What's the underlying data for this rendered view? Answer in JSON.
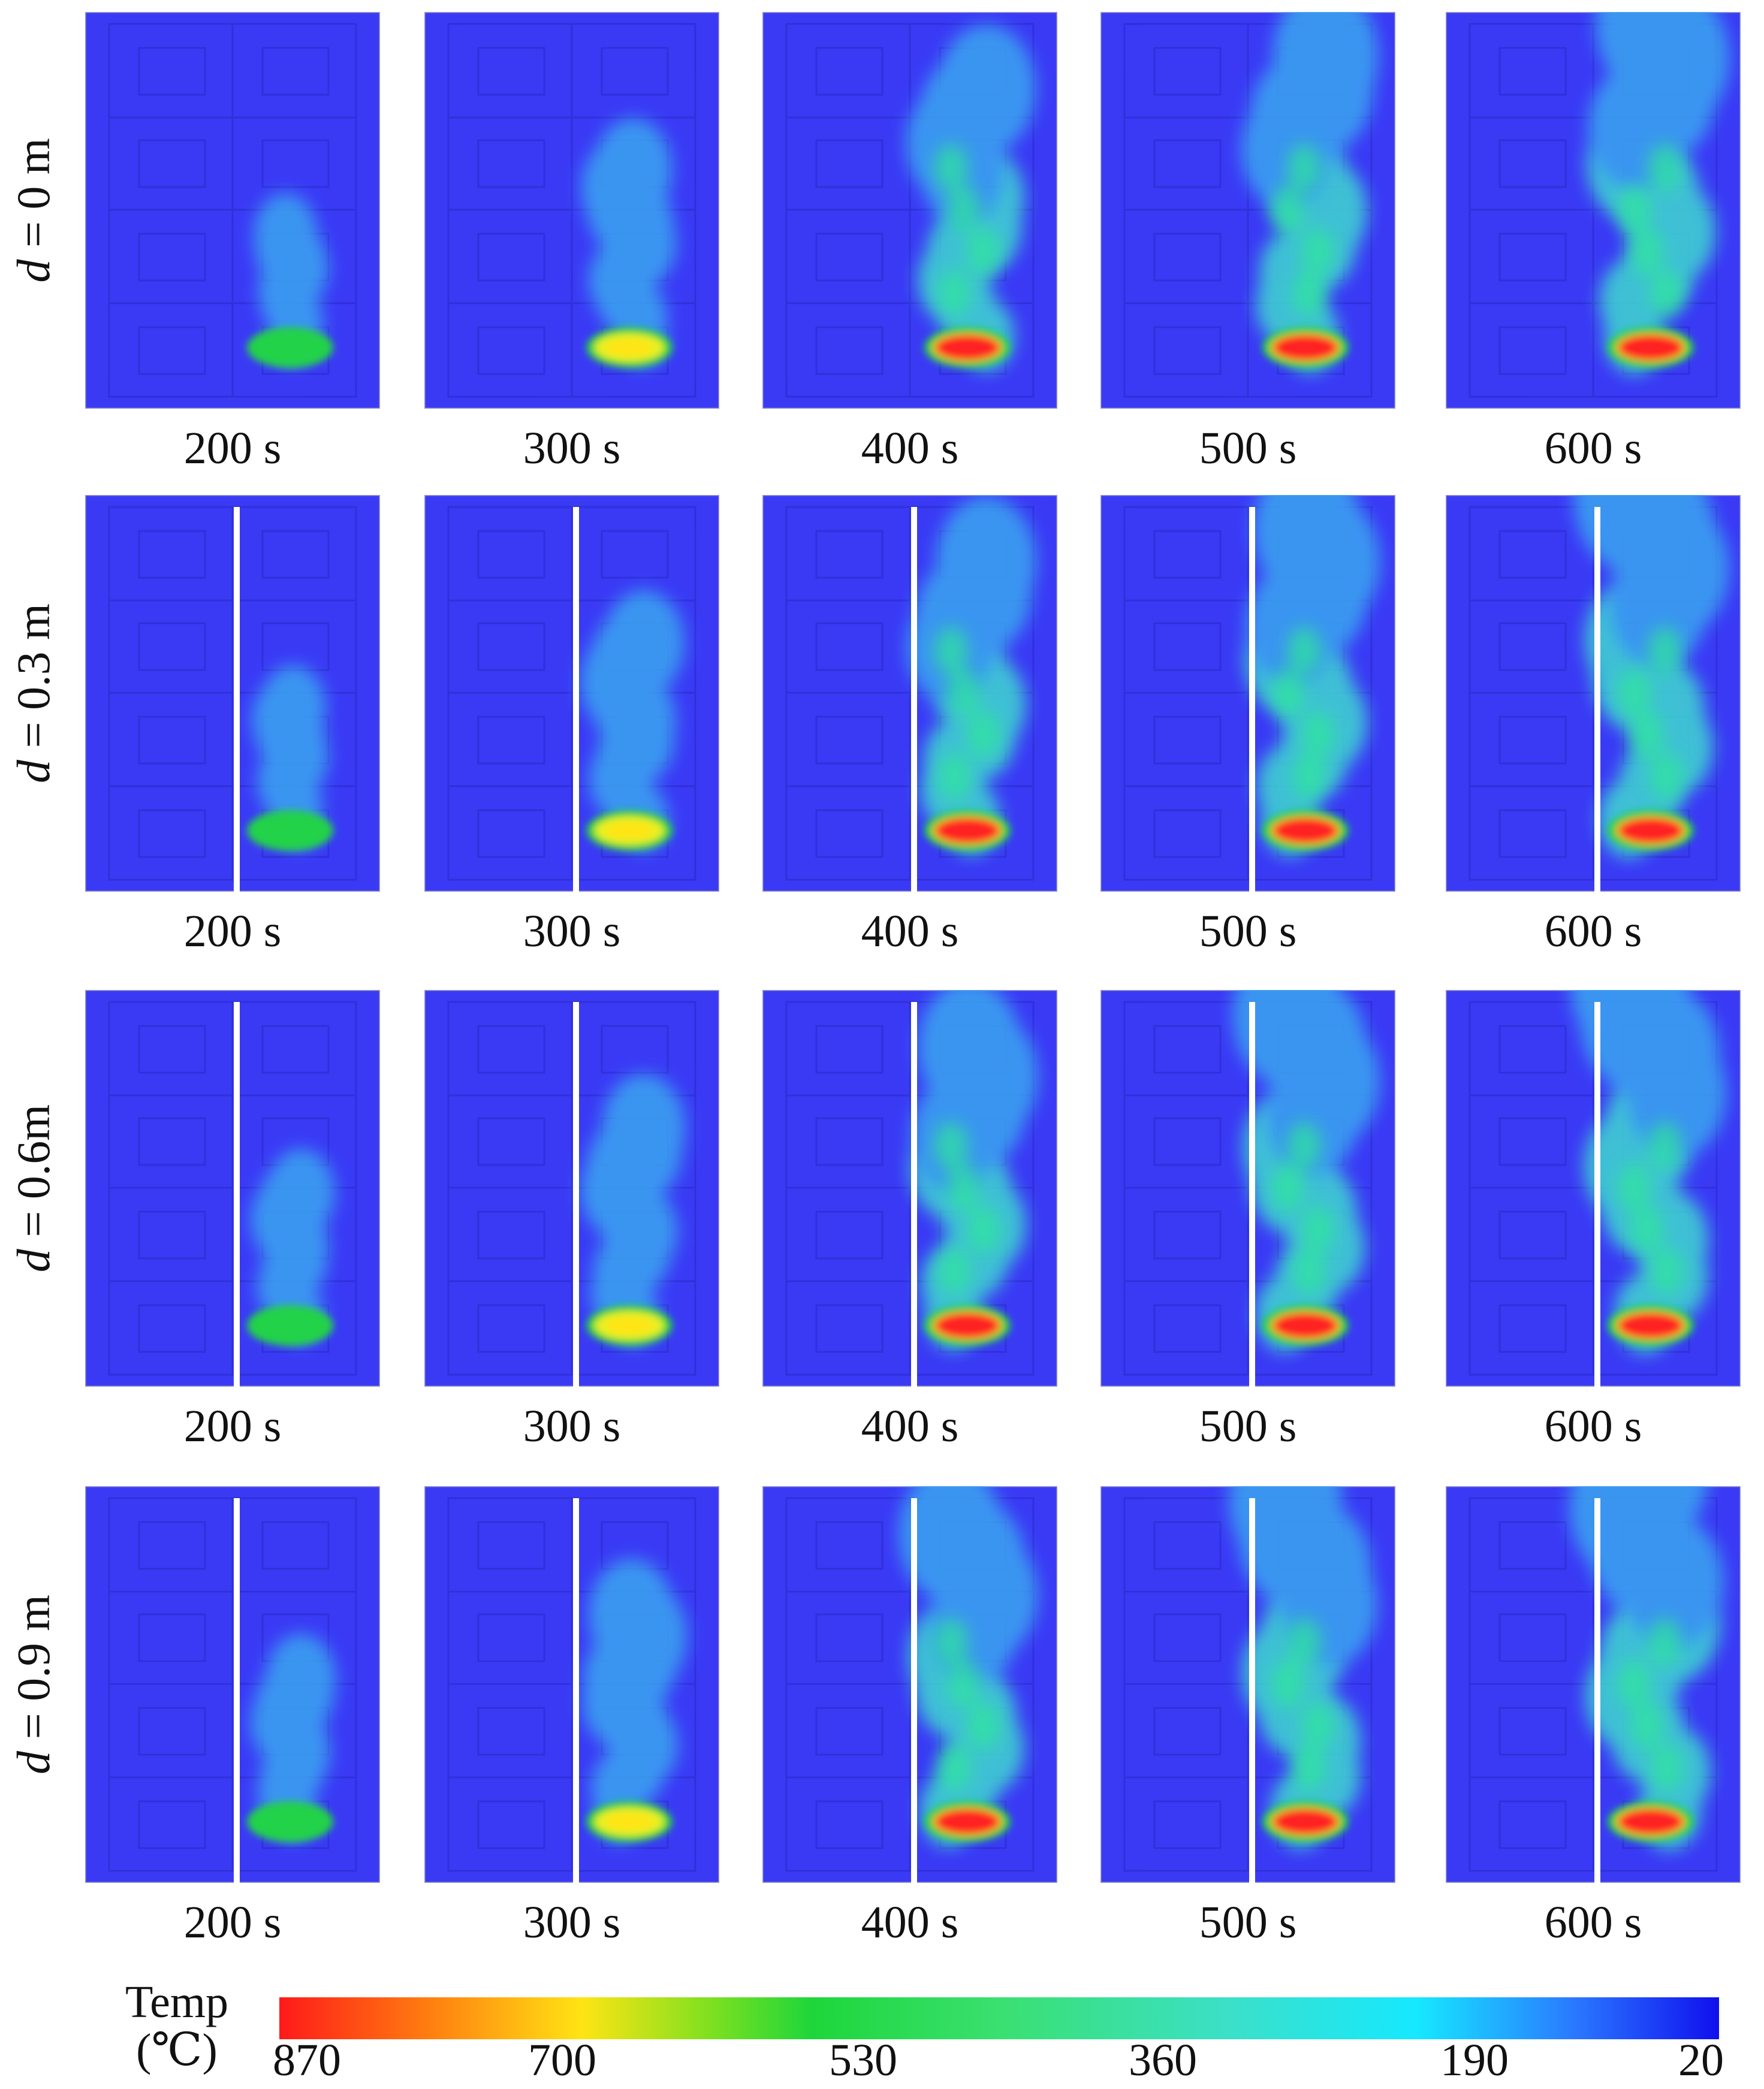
{
  "rows": [
    {
      "label_var": "d",
      "label_rest": " = 0 m",
      "wall": false,
      "panels": [
        {
          "time": "200 s"
        },
        {
          "time": "300 s"
        },
        {
          "time": "400 s"
        },
        {
          "time": "500 s"
        },
        {
          "time": "600 s"
        }
      ]
    },
    {
      "label_var": "d",
      "label_rest": " = 0.3 m",
      "wall": true,
      "panels": [
        {
          "time": "200 s"
        },
        {
          "time": "300 s"
        },
        {
          "time": "400 s"
        },
        {
          "time": "500 s"
        },
        {
          "time": "600 s"
        }
      ]
    },
    {
      "label_var": "d",
      "label_rest": " = 0.6m",
      "wall": true,
      "panels": [
        {
          "time": "200 s"
        },
        {
          "time": "300 s"
        },
        {
          "time": "400 s"
        },
        {
          "time": "500 s"
        },
        {
          "time": "600 s"
        }
      ]
    },
    {
      "label_var": "d",
      "label_rest": " = 0.9 m",
      "wall": true,
      "panels": [
        {
          "time": "200 s"
        },
        {
          "time": "300 s"
        },
        {
          "time": "400 s"
        },
        {
          "time": "500 s"
        },
        {
          "time": "600 s"
        }
      ]
    }
  ],
  "legend": {
    "title_line1": "Temp",
    "title_line2": "(℃)",
    "ticks": [
      "870",
      "700",
      "530",
      "360",
      "190",
      "20"
    ],
    "colors": {
      "background": "#3a3af5",
      "hot": "#ff2020",
      "warm": "#ffe414",
      "mid": "#22d24a",
      "cool": "#30e0e8"
    }
  }
}
